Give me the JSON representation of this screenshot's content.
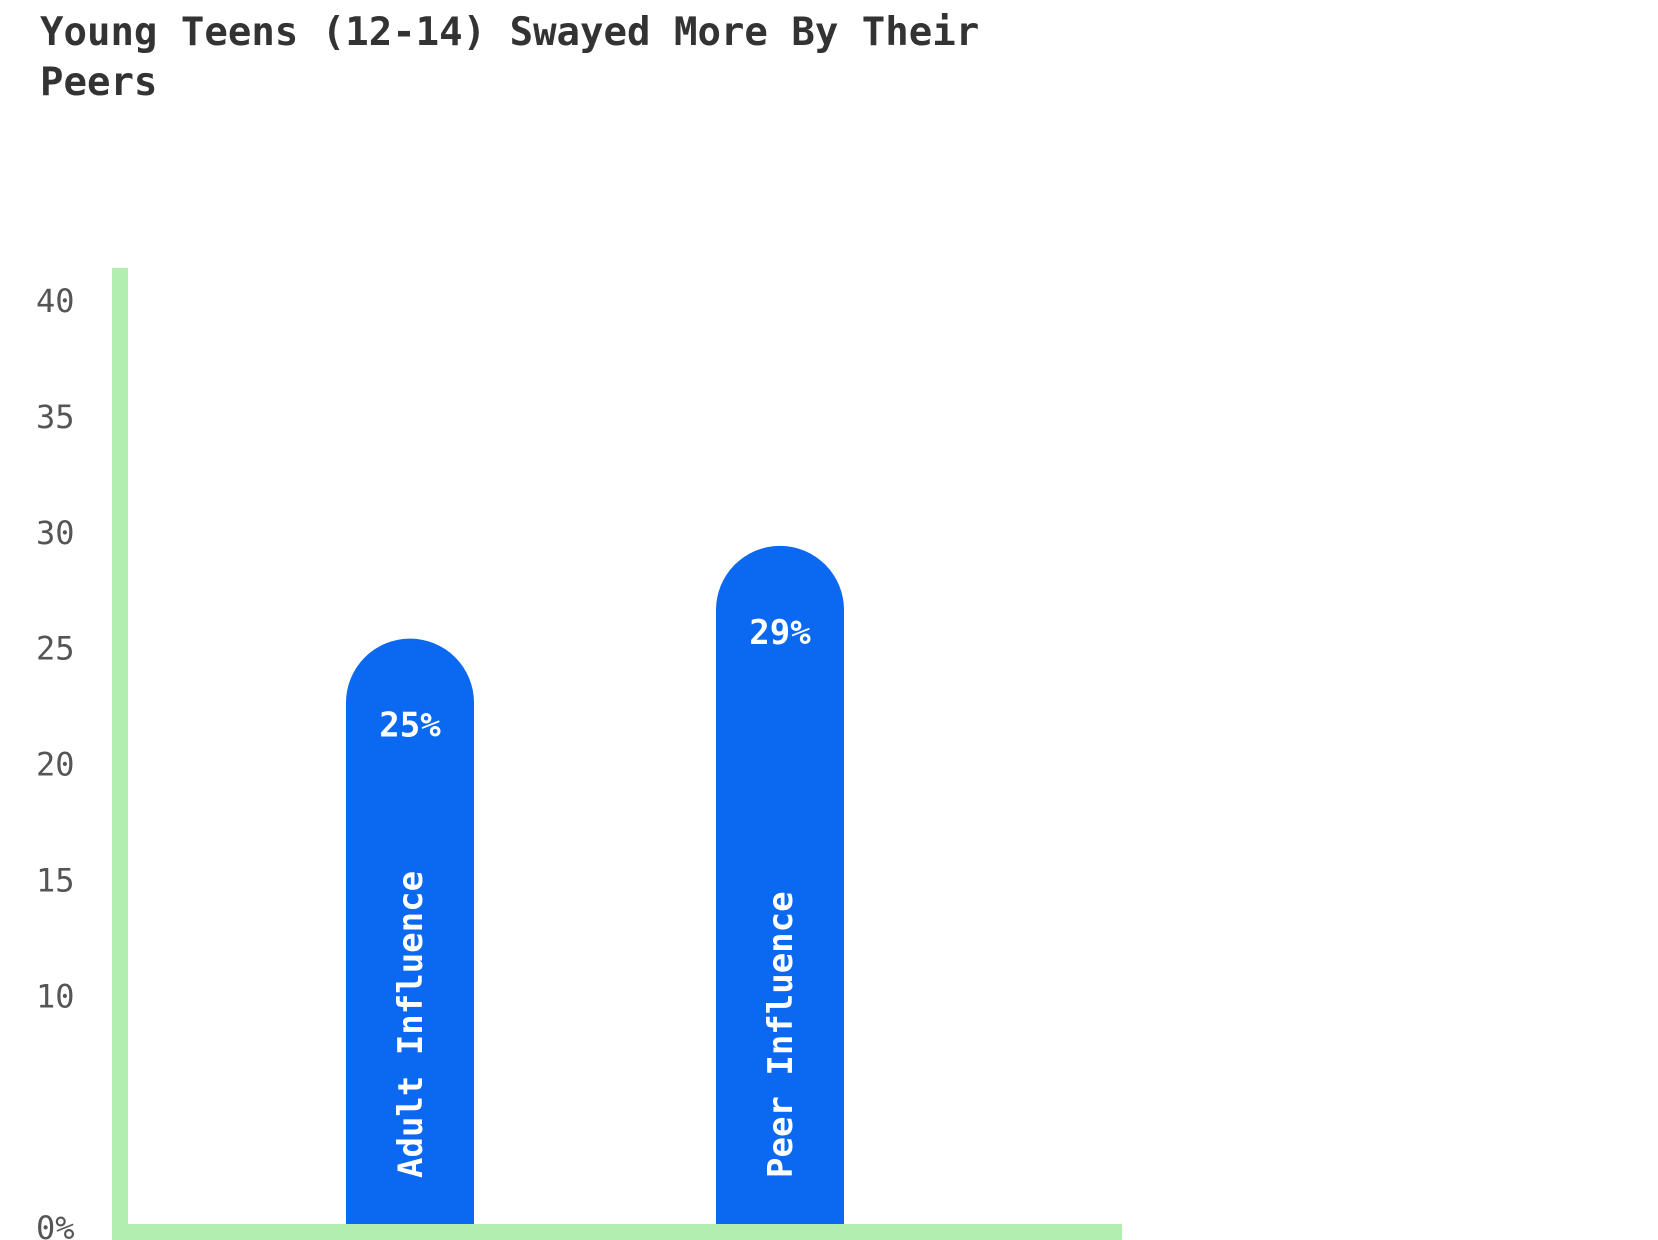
{
  "colors": {
    "bar": "#0b68f0",
    "axis": "#b3eeb1",
    "text": "#333333",
    "tick": "#555555"
  },
  "chart_data": {
    "type": "bar",
    "title": "Young Teens (12-14) Swayed More By Their Peers",
    "categories": [
      "Adult Influence",
      "Peer Influence"
    ],
    "values": [
      25,
      29
    ],
    "value_labels": [
      "25%",
      "29%"
    ],
    "ylim": [
      0,
      40
    ],
    "yticks": [
      0,
      10,
      15,
      20,
      25,
      30,
      35,
      40
    ],
    "ytick_labels": [
      "0%",
      "10",
      "15",
      "20",
      "25",
      "30",
      "35",
      "40"
    ],
    "grid": false,
    "legend": "none"
  }
}
